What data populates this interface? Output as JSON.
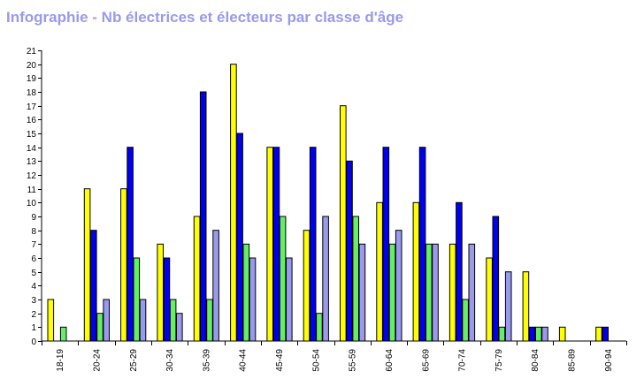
{
  "chart_data": {
    "type": "bar",
    "title": "Infographie - Nb électrices et électeurs par classe d'âge",
    "xlabel": "",
    "ylabel": "",
    "ylim": [
      0,
      21
    ],
    "yticks": [
      0,
      1,
      2,
      3,
      4,
      5,
      6,
      7,
      8,
      9,
      10,
      11,
      12,
      13,
      14,
      15,
      16,
      17,
      18,
      19,
      20,
      21
    ],
    "grid": false,
    "legend": "none",
    "categories": [
      "18-19",
      "20-24",
      "25-29",
      "30-34",
      "35-39",
      "40-44",
      "45-49",
      "50-54",
      "55-59",
      "60-64",
      "65-69",
      "70-74",
      "75-79",
      "80-84",
      "85-89",
      "90-94"
    ],
    "series": [
      {
        "color": "#ffff00",
        "values": [
          3,
          11,
          11,
          7,
          9,
          20,
          14,
          8,
          17,
          10,
          10,
          7,
          6,
          5,
          1,
          1
        ]
      },
      {
        "color": "#0000ee",
        "values": [
          0,
          8,
          14,
          6,
          18,
          15,
          14,
          14,
          13,
          14,
          14,
          10,
          9,
          1,
          0,
          1
        ]
      },
      {
        "color": "#66ee66",
        "values": [
          1,
          2,
          6,
          3,
          3,
          7,
          9,
          2,
          9,
          7,
          7,
          3,
          1,
          1,
          0,
          0
        ]
      },
      {
        "color": "#9999ee",
        "values": [
          0,
          3,
          3,
          2,
          8,
          6,
          6,
          9,
          7,
          8,
          7,
          7,
          5,
          1,
          0,
          0
        ]
      }
    ]
  }
}
